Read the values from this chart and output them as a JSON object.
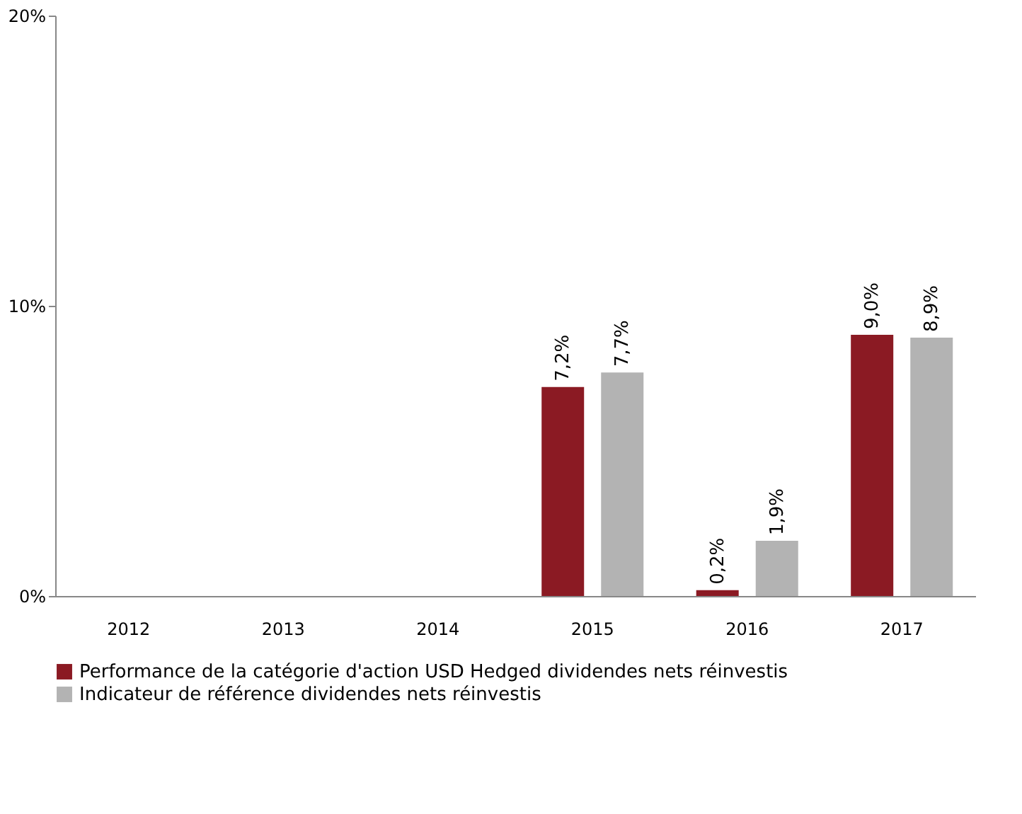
{
  "chart_data": {
    "type": "bar",
    "categories": [
      "2012",
      "2013",
      "2014",
      "2015",
      "2016",
      "2017"
    ],
    "series": [
      {
        "name": "Performance de la catégorie d'action USD Hedged dividendes nets réinvestis",
        "color": "#8b1a23",
        "values": [
          null,
          null,
          null,
          7.2,
          0.2,
          9.0
        ],
        "value_labels": [
          null,
          null,
          null,
          "7,2%",
          "0,2%",
          "9,0%"
        ]
      },
      {
        "name": "Indicateur de référence dividendes nets réinvestis",
        "color": "#b3b3b3",
        "values": [
          null,
          null,
          null,
          7.7,
          1.9,
          8.9
        ],
        "value_labels": [
          null,
          null,
          null,
          "7,7%",
          "1,9%",
          "8,9%"
        ]
      }
    ],
    "ylim": [
      0,
      20
    ],
    "yticks": [
      {
        "value": 0,
        "label": "0%"
      },
      {
        "value": 10,
        "label": "10%"
      },
      {
        "value": 20,
        "label": "20%"
      }
    ],
    "grid": false,
    "legend": "bottom"
  }
}
